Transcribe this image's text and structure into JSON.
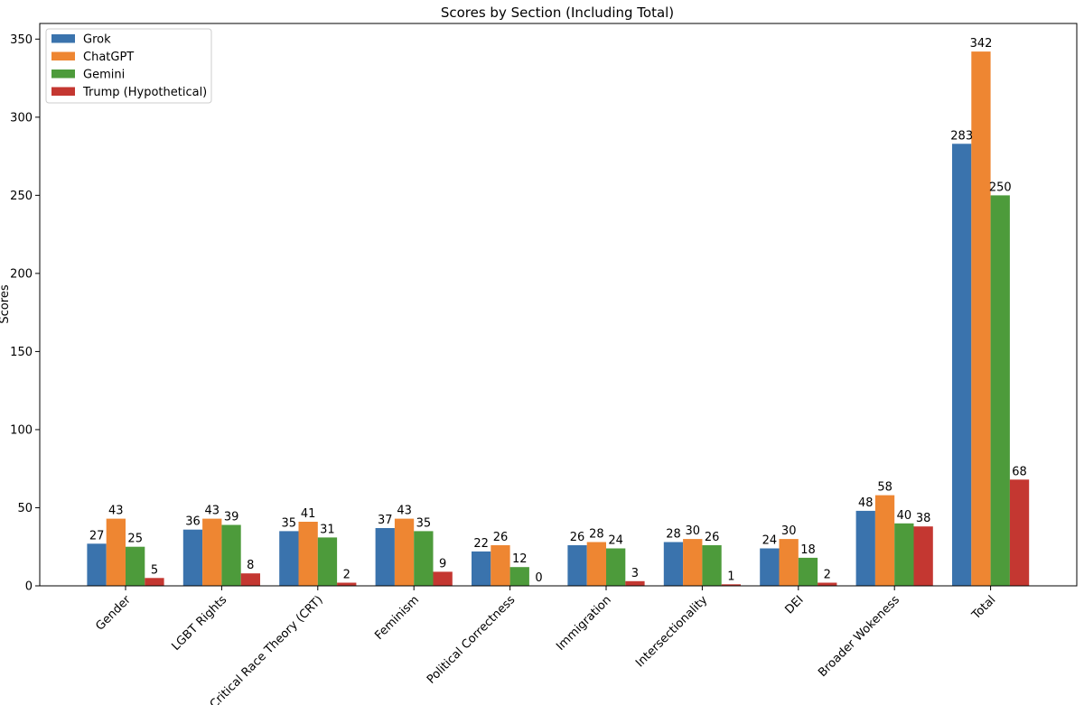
{
  "chart_data": {
    "type": "bar",
    "title": "Scores by Section (Including Total)",
    "xlabel": "",
    "ylabel": "Scores",
    "ylim": [
      0,
      360
    ],
    "yticks": [
      0,
      50,
      100,
      150,
      200,
      250,
      300,
      350
    ],
    "grid": false,
    "legend_position": "top-left",
    "categories": [
      "Gender",
      "LGBT Rights",
      "Critical Race Theory (CRT)",
      "Feminism",
      "Political Correctness",
      "Immigration",
      "Intersectionality",
      "DEI",
      "Broader Wokeness",
      "Total"
    ],
    "series": [
      {
        "name": "Grok",
        "color": "#3a73ad",
        "values": [
          27,
          36,
          35,
          37,
          22,
          26,
          28,
          24,
          48,
          283
        ]
      },
      {
        "name": "ChatGPT",
        "color": "#ee8632",
        "values": [
          43,
          43,
          41,
          43,
          26,
          28,
          30,
          30,
          58,
          342
        ]
      },
      {
        "name": "Gemini",
        "color": "#4d9b3b",
        "values": [
          25,
          39,
          31,
          35,
          12,
          24,
          26,
          18,
          40,
          250
        ]
      },
      {
        "name": "Trump (Hypothetical)",
        "color": "#c43731",
        "values": [
          5,
          8,
          2,
          9,
          0,
          3,
          1,
          2,
          38,
          68
        ]
      }
    ]
  }
}
